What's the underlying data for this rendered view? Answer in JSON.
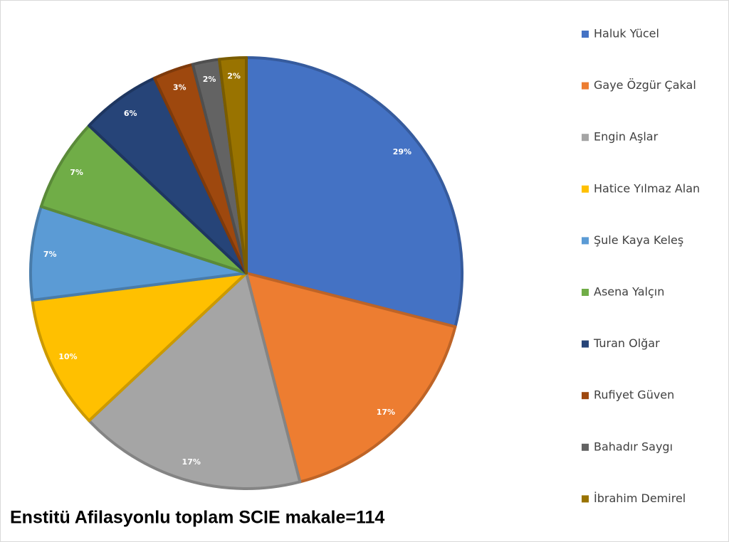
{
  "chart_data": {
    "type": "pie",
    "title": "Enstitü Afilasyonlu toplam SCIE makale=114",
    "categories": [
      "Haluk Yücel",
      "Gaye Özgür Çakal",
      "Engin Aşlar",
      "Hatice Yılmaz Alan",
      "Şule Kaya Keleş",
      "Asena Yalçın",
      "Turan Olğar",
      "Rufiyet Güven",
      "Bahadır Saygı",
      "İbrahim Demirel"
    ],
    "values": [
      29,
      17,
      17,
      10,
      7,
      7,
      6,
      3,
      2,
      2
    ],
    "value_labels": [
      "29%",
      "17%",
      "17%",
      "10%",
      "7%",
      "7%",
      "6%",
      "3%",
      "2%",
      "2%"
    ],
    "colors": [
      "#4472c4",
      "#ed7d31",
      "#a5a5a5",
      "#ffc000",
      "#5b9bd5",
      "#70ad47",
      "#264478",
      "#9e480e",
      "#636363",
      "#997300"
    ],
    "legend": "right"
  }
}
